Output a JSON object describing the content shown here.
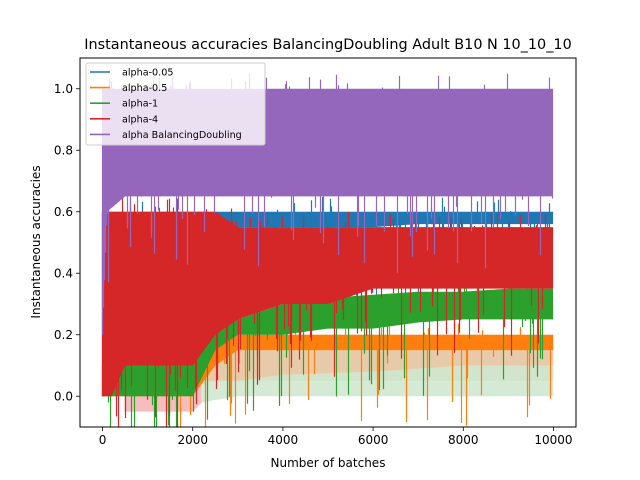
{
  "chart_data": {
    "type": "line",
    "title": "Instantaneous accuracies BalancingDoubling Adult B10 N 10_10_10",
    "xlabel": "Number of batches",
    "ylabel": "Instantaneous accuracies",
    "xlim": [
      -500,
      10500
    ],
    "ylim": [
      -0.1,
      1.1
    ],
    "xticks": [
      0,
      2000,
      4000,
      6000,
      8000,
      10000
    ],
    "yticks": [
      0.0,
      0.2,
      0.4,
      0.6,
      0.8,
      1.0
    ],
    "xtick_labels": [
      "0",
      "2000",
      "4000",
      "6000",
      "8000",
      "10000"
    ],
    "ytick_labels": [
      "0.0",
      "0.2",
      "0.4",
      "0.6",
      "0.8",
      "1.0"
    ],
    "grid": false,
    "legend_position": "top-left",
    "series": [
      {
        "name": "alpha-0.05",
        "color": "#1f77b4",
        "x": [
          0,
          200,
          500,
          1000,
          2000,
          3000,
          4000,
          5000,
          6000,
          7000,
          8000,
          9000,
          10000
        ],
        "low": [
          0.0,
          0.2,
          0.4,
          0.45,
          0.5,
          0.55,
          0.55,
          0.55,
          0.55,
          0.56,
          0.56,
          0.56,
          0.56
        ],
        "high": [
          0.6,
          0.6,
          0.6,
          0.6,
          0.6,
          0.6,
          0.6,
          0.6,
          0.6,
          0.6,
          0.6,
          0.6,
          0.6
        ]
      },
      {
        "name": "alpha-0.5",
        "color": "#ff7f0e",
        "x": [
          0,
          200,
          500,
          1000,
          2000,
          2500,
          3000,
          4000,
          5000,
          6000,
          7000,
          8000,
          9000,
          10000
        ],
        "low": [
          0.0,
          0.0,
          0.0,
          0.0,
          0.0,
          0.1,
          0.15,
          0.15,
          0.15,
          0.15,
          0.15,
          0.15,
          0.15,
          0.15
        ],
        "high": [
          0.1,
          0.1,
          0.1,
          0.1,
          0.1,
          0.2,
          0.2,
          0.2,
          0.2,
          0.2,
          0.2,
          0.2,
          0.2,
          0.2
        ]
      },
      {
        "name": "alpha-1",
        "color": "#2ca02c",
        "x": [
          0,
          500,
          1000,
          2000,
          2500,
          3000,
          4000,
          5000,
          6000,
          7000,
          8000,
          9000,
          10000
        ],
        "low": [
          0.0,
          0.0,
          0.0,
          0.0,
          0.15,
          0.2,
          0.2,
          0.22,
          0.22,
          0.24,
          0.25,
          0.25,
          0.25
        ],
        "high": [
          0.1,
          0.1,
          0.1,
          0.15,
          0.22,
          0.25,
          0.3,
          0.32,
          0.33,
          0.34,
          0.34,
          0.35,
          0.35
        ]
      },
      {
        "name": "alpha-4",
        "color": "#d62728",
        "x": [
          0,
          200,
          500,
          1000,
          2000,
          2500,
          3000,
          4000,
          5000,
          6000,
          7000,
          8000,
          9000,
          10000
        ],
        "low": [
          0.0,
          0.0,
          0.1,
          0.1,
          0.1,
          0.2,
          0.25,
          0.3,
          0.3,
          0.35,
          0.35,
          0.35,
          0.35,
          0.35
        ],
        "high": [
          0.6,
          0.6,
          0.6,
          0.6,
          0.6,
          0.6,
          0.55,
          0.55,
          0.55,
          0.55,
          0.55,
          0.55,
          0.55,
          0.55
        ]
      },
      {
        "name": "alpha BalancingDoubling",
        "color": "#9467bd",
        "x": [
          0,
          100,
          500,
          1000,
          2000,
          3000,
          4000,
          5000,
          6000,
          7000,
          8000,
          9000,
          10000
        ],
        "low": [
          0.2,
          0.6,
          0.65,
          0.65,
          0.65,
          0.65,
          0.65,
          0.65,
          0.65,
          0.65,
          0.65,
          0.65,
          0.65
        ],
        "high": [
          1.0,
          1.0,
          1.0,
          1.0,
          1.0,
          1.0,
          1.0,
          1.0,
          1.0,
          1.0,
          1.0,
          1.0,
          1.0
        ]
      }
    ],
    "faint_bands": [
      {
        "color": "#f4b6b7",
        "x": [
          500,
          1000,
          2000,
          2200
        ],
        "low": [
          -0.05,
          -0.05,
          -0.05,
          -0.02
        ],
        "high": [
          0.1,
          0.1,
          0.1,
          0.12
        ]
      },
      {
        "color": "#e4c4a0",
        "x": [
          2000,
          2500,
          3000,
          4000,
          6000,
          8000,
          10000
        ],
        "low": [
          0.02,
          0.05,
          0.05,
          0.05,
          0.05,
          0.05,
          0.05
        ],
        "high": [
          0.15,
          0.2,
          0.2,
          0.2,
          0.2,
          0.2,
          0.2
        ]
      },
      {
        "color": "#cfe8cf",
        "x": [
          2200,
          3000,
          4000,
          6000,
          8000,
          10000
        ],
        "low": [
          -0.02,
          0.0,
          0.0,
          0.0,
          0.0,
          0.0
        ],
        "high": [
          0.05,
          0.05,
          0.07,
          0.08,
          0.1,
          0.1
        ]
      }
    ]
  }
}
